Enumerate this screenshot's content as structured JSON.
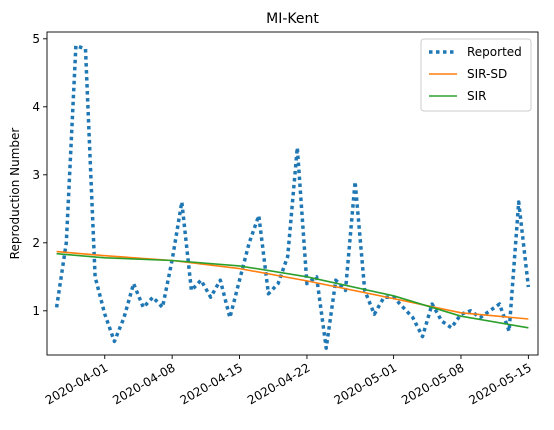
{
  "chart_data": {
    "type": "line",
    "title": "MI-Kent",
    "xlabel": "",
    "ylabel": "Reproduction Number",
    "xlim": [
      "2020-03-26",
      "2020-05-16"
    ],
    "ylim": [
      0.35,
      5.1
    ],
    "grid": false,
    "legend_position": "top-right",
    "x_ticks": [
      "2020-04-01",
      "2020-04-08",
      "2020-04-15",
      "2020-04-22",
      "2020-05-01",
      "2020-05-08",
      "2020-05-15"
    ],
    "y_ticks": [
      1,
      2,
      3,
      4,
      5
    ],
    "series": [
      {
        "name": "Reported",
        "color": "#1f77b4",
        "style": "dotted",
        "x": [
          "2020-03-27",
          "2020-03-28",
          "2020-03-29",
          "2020-03-30",
          "2020-03-31",
          "2020-04-01",
          "2020-04-02",
          "2020-04-03",
          "2020-04-04",
          "2020-04-05",
          "2020-04-06",
          "2020-04-07",
          "2020-04-08",
          "2020-04-09",
          "2020-04-10",
          "2020-04-11",
          "2020-04-12",
          "2020-04-13",
          "2020-04-14",
          "2020-04-15",
          "2020-04-16",
          "2020-04-17",
          "2020-04-18",
          "2020-04-19",
          "2020-04-20",
          "2020-04-21",
          "2020-04-22",
          "2020-04-23",
          "2020-04-24",
          "2020-04-25",
          "2020-04-26",
          "2020-04-27",
          "2020-04-28",
          "2020-04-29",
          "2020-04-30",
          "2020-05-01",
          "2020-05-02",
          "2020-05-03",
          "2020-05-04",
          "2020-05-05",
          "2020-05-06",
          "2020-05-07",
          "2020-05-08",
          "2020-05-09",
          "2020-05-10",
          "2020-05-11",
          "2020-05-12",
          "2020-05-13",
          "2020-05-14",
          "2020-05-15"
        ],
        "values": [
          1.05,
          2.0,
          4.9,
          4.85,
          1.5,
          0.95,
          0.55,
          0.9,
          1.4,
          1.05,
          1.2,
          1.05,
          1.75,
          2.6,
          1.3,
          1.45,
          1.2,
          1.45,
          0.9,
          1.45,
          2.0,
          2.4,
          1.25,
          1.4,
          1.8,
          3.4,
          1.4,
          1.5,
          0.45,
          1.45,
          1.3,
          2.9,
          1.3,
          0.95,
          1.2,
          1.2,
          1.05,
          0.9,
          0.62,
          1.1,
          0.85,
          0.75,
          0.95,
          1.0,
          0.9,
          1.0,
          1.1,
          0.7,
          2.6,
          1.35
        ]
      },
      {
        "name": "SIR-SD",
        "color": "#ff7f0e",
        "style": "solid",
        "x": [
          "2020-03-27",
          "2020-04-01",
          "2020-04-08",
          "2020-04-15",
          "2020-04-22",
          "2020-05-01",
          "2020-05-08",
          "2020-05-15"
        ],
        "values": [
          1.87,
          1.81,
          1.74,
          1.62,
          1.44,
          1.18,
          0.97,
          0.88
        ]
      },
      {
        "name": "SIR",
        "color": "#2ca02c",
        "style": "solid",
        "x": [
          "2020-03-27",
          "2020-04-01",
          "2020-04-08",
          "2020-04-15",
          "2020-04-22",
          "2020-05-01",
          "2020-05-08",
          "2020-05-15"
        ],
        "values": [
          1.84,
          1.78,
          1.74,
          1.66,
          1.5,
          1.22,
          0.92,
          0.75
        ]
      }
    ]
  }
}
